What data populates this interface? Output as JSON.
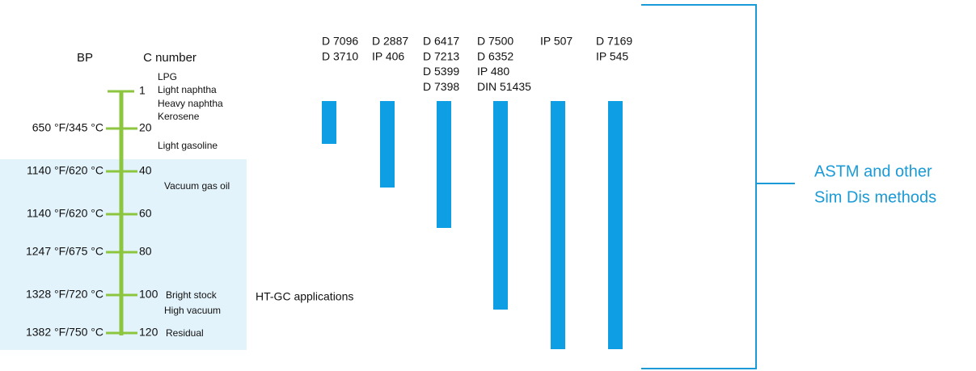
{
  "headers": {
    "bp": "BP",
    "c_number": "C number"
  },
  "scale": [
    {
      "c": "1"
    },
    {
      "c": "20",
      "bp": "650 °F/345 °C"
    },
    {
      "c": "40",
      "bp": "1140 °F/620 °C"
    },
    {
      "c": "60",
      "bp": "1140 °F/620 °C"
    },
    {
      "c": "80",
      "bp": "1247 °F/675 °C"
    },
    {
      "c": "100",
      "bp": "1328 °F/720 °C"
    },
    {
      "c": "120",
      "bp": "1382 °F/750 °C"
    }
  ],
  "fractions": [
    "LPG",
    "Light naphtha",
    "Heavy naphtha",
    "Kerosene",
    "Light gasoline",
    "Vacuum gas oil",
    "Bright stock",
    "High vacuum",
    "Residual"
  ],
  "methods": [
    {
      "codes": [
        "D 7096",
        "D 3710"
      ]
    },
    {
      "codes": [
        "D 2887",
        "IP 406"
      ]
    },
    {
      "codes": [
        "D 6417",
        "D 7213",
        "D 5399",
        "D 7398"
      ]
    },
    {
      "codes": [
        "D 7500",
        "D 6352",
        "IP 480",
        "DIN 51435"
      ]
    },
    {
      "codes": [
        "IP 507"
      ]
    },
    {
      "codes": [
        "D 7169",
        "IP 545"
      ]
    }
  ],
  "note": "HT-GC applications",
  "callout": [
    "ASTM and other",
    "Sim Dis methods"
  ]
}
